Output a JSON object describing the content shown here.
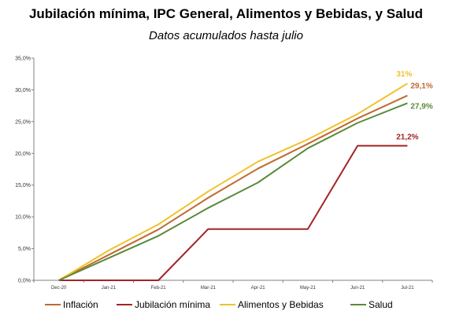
{
  "title": "Jubilación mínima, IPC General, Alimentos y Bebidas, y Salud",
  "subtitle": "Datos acumulados hasta julio",
  "chart_data": {
    "type": "line",
    "title": "Jubilación mínima, IPC General, Alimentos y Bebidas, y Salud",
    "subtitle": "Datos acumulados hasta julio",
    "x": [
      "Dec-20",
      "Jan-21",
      "Feb-21",
      "Mar-21",
      "Apr-21",
      "May-21",
      "Jun-21",
      "Jul-21"
    ],
    "ylim": [
      0,
      35
    ],
    "yticks": [
      "0,0%",
      "5,0%",
      "10,0%",
      "15,0%",
      "20,0%",
      "25,0%",
      "30,0%",
      "35,0%"
    ],
    "ytick_values": [
      0,
      5,
      10,
      15,
      20,
      25,
      30,
      35
    ],
    "grid": false,
    "legend_position": "bottom",
    "series": [
      {
        "name": "Inflación",
        "color": "#c0692f",
        "values": [
          0,
          4.0,
          8.0,
          13.0,
          17.6,
          21.5,
          25.5,
          29.1
        ],
        "end_label": "29,1%"
      },
      {
        "name": "Jubilación mínima",
        "color": "#a32424",
        "values": [
          0,
          0,
          0,
          8.07,
          8.07,
          8.07,
          21.2,
          21.2
        ],
        "end_label": "21,2%"
      },
      {
        "name": "Alimentos y Bebidas",
        "color": "#f0c22c",
        "values": [
          0,
          4.7,
          8.8,
          14.0,
          18.7,
          22.2,
          26.2,
          31.0
        ],
        "end_label": "31%"
      },
      {
        "name": "Salud",
        "color": "#5a8a3a",
        "values": [
          0,
          3.5,
          7.0,
          11.4,
          15.4,
          20.8,
          24.8,
          27.9
        ],
        "end_label": "27,9%"
      }
    ]
  }
}
